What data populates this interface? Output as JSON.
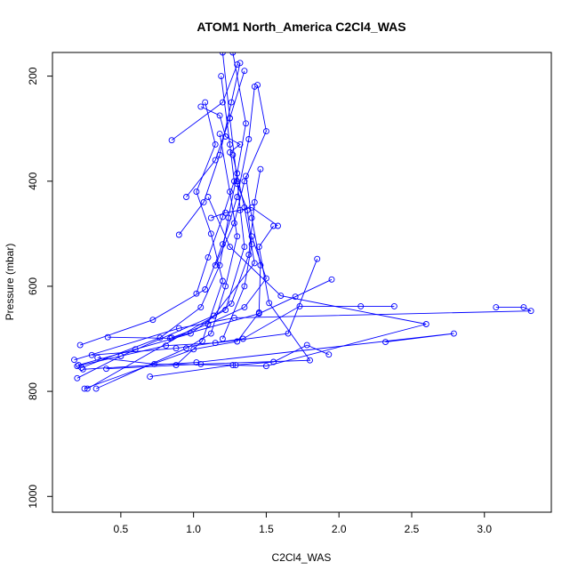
{
  "chart_data": {
    "type": "line",
    "title": "ATOM1 North_America C2Cl4_WAS",
    "xlabel": "C2Cl4_WAS",
    "ylabel": "Pressure (mbar)",
    "xlim": [
      0.03,
      3.46
    ],
    "ylim": [
      1030,
      155
    ],
    "y_inverted": true,
    "x_ticks": [
      {
        "value": 0.5,
        "label": "0.5"
      },
      {
        "value": 1.0,
        "label": "1.0"
      },
      {
        "value": 1.5,
        "label": "1.5"
      },
      {
        "value": 2.0,
        "label": "2.0"
      },
      {
        "value": 2.5,
        "label": "2.5"
      },
      {
        "value": 3.0,
        "label": "3.0"
      }
    ],
    "y_ticks": [
      {
        "value": 200,
        "label": "200"
      },
      {
        "value": 400,
        "label": "400"
      },
      {
        "value": 600,
        "label": "600"
      },
      {
        "value": 800,
        "label": "800"
      },
      {
        "value": 1000,
        "label": "1000"
      }
    ],
    "grid": false,
    "legend": "none",
    "markers": "open-circle",
    "color": "#0000ff",
    "series": [
      {
        "points": [
          [
            0.27,
            795
          ],
          [
            1.22,
            645
          ],
          [
            1.35,
            525
          ],
          [
            1.3,
            400
          ],
          [
            1.25,
            280
          ],
          [
            1.2,
            155
          ]
        ]
      },
      {
        "points": [
          [
            0.23,
            755
          ],
          [
            0.77,
            698
          ],
          [
            1.05,
            640
          ],
          [
            1.18,
            560
          ],
          [
            1.24,
            470
          ],
          [
            1.3,
            385
          ],
          [
            1.36,
            290
          ],
          [
            1.27,
            155
          ]
        ]
      },
      {
        "points": [
          [
            0.18,
            740
          ],
          [
            0.9,
            680
          ],
          [
            1.28,
            660
          ],
          [
            3.32,
            647
          ],
          [
            3.27,
            640
          ],
          [
            3.08,
            640
          ]
        ]
      },
      {
        "points": [
          [
            0.22,
            712
          ],
          [
            0.72,
            664
          ],
          [
            1.08,
            606
          ],
          [
            1.2,
            520
          ],
          [
            1.3,
            430
          ],
          [
            1.38,
            320
          ],
          [
            1.42,
            220
          ]
        ]
      },
      {
        "points": [
          [
            0.2,
            752
          ],
          [
            0.81,
            713
          ],
          [
            1.15,
            708
          ],
          [
            1.65,
            690
          ],
          [
            1.85,
            548
          ]
        ]
      },
      {
        "points": [
          [
            0.24,
            758
          ],
          [
            1.02,
            745
          ],
          [
            2.79,
            690
          ],
          [
            2.32,
            706
          ]
        ]
      },
      {
        "points": [
          [
            0.3,
            731
          ],
          [
            0.88,
            718
          ],
          [
            1.34,
            700
          ],
          [
            1.73,
            638
          ],
          [
            2.15,
            638
          ],
          [
            2.38,
            638
          ]
        ]
      },
      {
        "points": [
          [
            0.41,
            697
          ],
          [
            0.84,
            699
          ],
          [
            1.45,
            652
          ],
          [
            1.7,
            620
          ],
          [
            1.95,
            587
          ]
        ]
      },
      {
        "points": [
          [
            0.34,
            736
          ],
          [
            0.73,
            748
          ],
          [
            1.29,
            750
          ],
          [
            1.55,
            744
          ],
          [
            1.78,
            712
          ],
          [
            1.93,
            730
          ]
        ]
      },
      {
        "points": [
          [
            0.2,
            775
          ],
          [
            0.5,
            733
          ],
          [
            1.14,
            656
          ],
          [
            1.42,
            556
          ],
          [
            1.35,
            450
          ],
          [
            1.27,
            350
          ]
        ]
      },
      {
        "points": [
          [
            0.33,
            795
          ],
          [
            0.95,
            718
          ],
          [
            1.12,
            690
          ],
          [
            1.22,
            600
          ],
          [
            1.3,
            505
          ],
          [
            1.25,
            420
          ],
          [
            1.18,
            310
          ]
        ]
      },
      {
        "points": [
          [
            0.21,
            750
          ],
          [
            0.6,
            720
          ],
          [
            0.98,
            690
          ],
          [
            1.26,
            633
          ],
          [
            1.38,
            540
          ],
          [
            1.42,
            440
          ],
          [
            1.46,
            377
          ]
        ]
      },
      {
        "points": [
          [
            0.25,
            795
          ],
          [
            1.0,
            720
          ],
          [
            1.3,
            705
          ],
          [
            1.45,
            650
          ],
          [
            1.46,
            560
          ],
          [
            1.4,
            470
          ],
          [
            1.36,
            390
          ]
        ]
      },
      {
        "points": [
          [
            0.4,
            757
          ],
          [
            1.05,
            748
          ],
          [
            1.8,
            741
          ],
          [
            1.52,
            632
          ],
          [
            1.45,
            525
          ],
          [
            1.55,
            485
          ]
        ]
      },
      {
        "points": [
          [
            0.7,
            772
          ],
          [
            1.27,
            750
          ],
          [
            1.5,
            752
          ],
          [
            2.6,
            672
          ],
          [
            1.6,
            618
          ],
          [
            1.25,
            525
          ],
          [
            1.1,
            430
          ]
        ]
      },
      {
        "points": [
          [
            0.88,
            750
          ],
          [
            1.06,
            704
          ],
          [
            1.2,
            590
          ],
          [
            1.12,
            500
          ],
          [
            1.02,
            420
          ],
          [
            1.15,
            330
          ],
          [
            1.08,
            250
          ]
        ]
      },
      {
        "points": [
          [
            0.9,
            502
          ],
          [
            1.07,
            440
          ],
          [
            1.18,
            350
          ],
          [
            1.26,
            250
          ],
          [
            1.32,
            175
          ]
        ]
      },
      {
        "points": [
          [
            0.85,
            322
          ],
          [
            1.2,
            250
          ],
          [
            1.3,
            178
          ]
        ]
      },
      {
        "points": [
          [
            0.95,
            430
          ],
          [
            1.15,
            360
          ],
          [
            1.25,
            280
          ],
          [
            1.35,
            190
          ]
        ]
      },
      {
        "points": [
          [
            1.02,
            614
          ],
          [
            1.1,
            545
          ],
          [
            1.2,
            468
          ],
          [
            1.28,
            400
          ],
          [
            1.25,
            330
          ],
          [
            1.19,
            200
          ]
        ]
      },
      {
        "points": [
          [
            1.15,
            560
          ],
          [
            1.28,
            480
          ],
          [
            1.35,
            400
          ],
          [
            1.5,
            305
          ],
          [
            1.44,
            217
          ]
        ]
      },
      {
        "points": [
          [
            1.2,
            700
          ],
          [
            1.35,
            600
          ],
          [
            1.4,
            520
          ],
          [
            1.37,
            455
          ],
          [
            1.3,
            405
          ]
        ]
      },
      {
        "points": [
          [
            0.85,
            698
          ],
          [
            1.1,
            672
          ],
          [
            1.35,
            640
          ],
          [
            1.5,
            585
          ],
          [
            1.4,
            505
          ]
        ]
      },
      {
        "points": [
          [
            1.05,
            258
          ],
          [
            1.18,
            275
          ],
          [
            1.22,
            315
          ],
          [
            1.32,
            330
          ],
          [
            1.25,
            345
          ]
        ]
      },
      {
        "points": [
          [
            1.12,
            470
          ],
          [
            1.22,
            460
          ],
          [
            1.32,
            455
          ],
          [
            1.4,
            450
          ],
          [
            1.58,
            485
          ]
        ]
      }
    ]
  }
}
